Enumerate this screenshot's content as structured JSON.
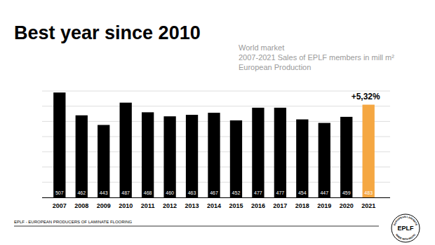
{
  "chart_data": {
    "type": "bar",
    "title": "Best year since 2010",
    "subtitle": [
      "World market",
      "2007-2021 Sales of EPLF members in mill m²",
      "European Production"
    ],
    "categories": [
      "2007",
      "2008",
      "2009",
      "2010",
      "2011",
      "2012",
      "2013",
      "2014",
      "2015",
      "2016",
      "2017",
      "2018",
      "2019",
      "2020",
      "2021"
    ],
    "values": [
      507,
      462,
      443,
      487,
      468,
      460,
      463,
      467,
      452,
      477,
      477,
      454,
      447,
      459,
      483
    ],
    "colors": [
      "#000000",
      "#000000",
      "#000000",
      "#000000",
      "#000000",
      "#000000",
      "#000000",
      "#000000",
      "#000000",
      "#000000",
      "#000000",
      "#000000",
      "#000000",
      "#000000",
      "#f5a742"
    ],
    "annotation": "+5,32%",
    "ylim": [
      300,
      510
    ],
    "yticks": [
      300,
      330,
      360,
      390,
      420,
      450,
      480,
      510
    ],
    "grid": true,
    "data_labels": true,
    "tick_labels": "x"
  },
  "footer": {
    "text": "EPLF - EUROPEAN PRODUCERS OF LAMINATE FLOORING",
    "logo": [
      "EPLF",
      "EUROPEAN LAMINATE",
      "MADE WITH WOOD"
    ]
  }
}
